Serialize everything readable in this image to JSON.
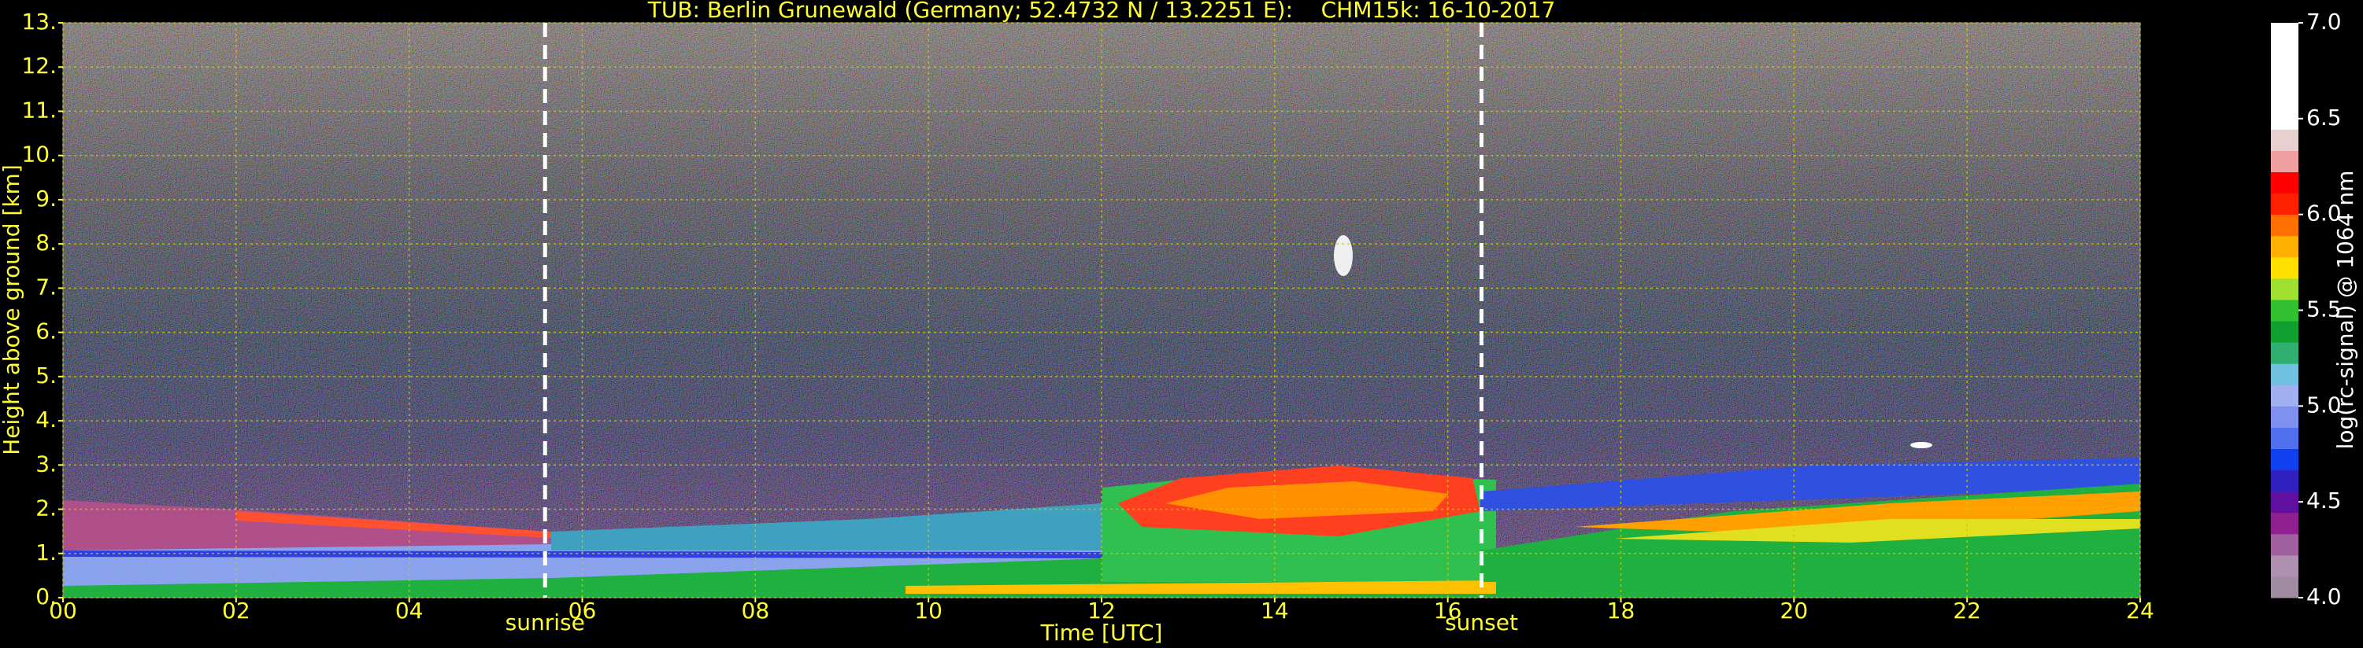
{
  "chart_data": {
    "type": "heatmap",
    "title": "TUB: Berlin Grunewald (Germany; 52.4732 N / 13.2251 E):    CHM15k: 16-10-2017",
    "x_label": "Time [UTC]",
    "y_label": "Height above ground [km]",
    "xlim": [
      0,
      24
    ],
    "xticks": [
      {
        "value": 0,
        "label": "00"
      },
      {
        "value": 2,
        "label": "02"
      },
      {
        "value": 4,
        "label": "04"
      },
      {
        "value": 6,
        "label": "06"
      },
      {
        "value": 8,
        "label": "08"
      },
      10,
      12,
      14,
      16,
      18,
      20,
      22,
      24
    ],
    "ylim": [
      0,
      13
    ],
    "yticks": [
      {
        "value": 0,
        "label": "0."
      },
      {
        "value": 1,
        "label": "1."
      },
      {
        "value": 2,
        "label": "2."
      },
      {
        "value": 3,
        "label": "3."
      },
      {
        "value": 4,
        "label": "4."
      },
      {
        "value": 5,
        "label": "5."
      },
      {
        "value": 6,
        "label": "6."
      },
      {
        "value": 7,
        "label": "7."
      },
      {
        "value": 8,
        "label": "8."
      },
      {
        "value": 9,
        "label": "9."
      },
      {
        "value": 10,
        "label": "10."
      },
      {
        "value": 11,
        "label": "11."
      },
      {
        "value": 12,
        "label": "12."
      },
      {
        "value": 13,
        "label": "13."
      }
    ],
    "grid": true,
    "annotations": [
      {
        "label": "sunrise",
        "x": 5.57
      },
      {
        "label": "sunset",
        "x": 16.39
      }
    ],
    "colorbar": {
      "label": "log(rc-signal) @ 1064 nm",
      "lim": [
        4,
        7
      ],
      "ticks": [
        {
          "value": 4,
          "label": "4.0"
        },
        4.5,
        {
          "value": 5,
          "label": "5.0"
        },
        5.5,
        {
          "value": 6,
          "label": "6.0"
        },
        6.5,
        {
          "value": 7,
          "label": "7.0"
        }
      ],
      "colormap": [
        "#a08ca0",
        "#b090b0",
        "#a060a0",
        "#902090",
        "#6010a0",
        "#3020c0",
        "#1040f0",
        "#5070f0",
        "#8090f0",
        "#a0b0f0",
        "#70c0e0",
        "#30b070",
        "#10a030",
        "#30c030",
        "#a0e030",
        "#ffe000",
        "#ffb000",
        "#ff7000",
        "#ff2000",
        "#ff0000",
        "#f0a0a0",
        "#e8d0d0",
        "#ffffff",
        "#ffffff",
        "#ffffff",
        "#ffffff",
        "#ffffff"
      ]
    }
  }
}
